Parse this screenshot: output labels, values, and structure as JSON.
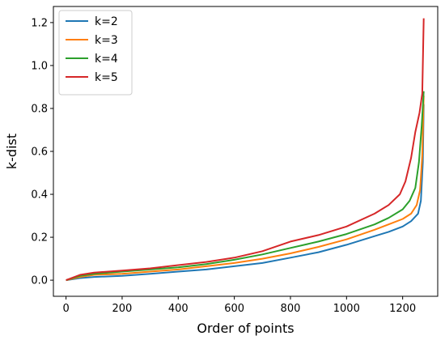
{
  "chart_data": {
    "type": "line",
    "xlabel": "Order of points",
    "ylabel": "k-dist",
    "xlim": [
      -45,
      1325
    ],
    "ylim": [
      -0.075,
      1.275
    ],
    "xticks": [
      0,
      200,
      400,
      600,
      800,
      1000,
      1200
    ],
    "yticks": [
      0.0,
      0.2,
      0.4,
      0.6,
      0.8,
      1.0,
      1.2
    ],
    "xtick_labels": [
      "0",
      "200",
      "400",
      "600",
      "800",
      "1000",
      "1200"
    ],
    "ytick_labels": [
      "0.0",
      "0.2",
      "0.4",
      "0.6",
      "0.8",
      "1.0",
      "1.2"
    ],
    "grid": false,
    "legend_position": "top-left",
    "series": [
      {
        "name": "k=2",
        "color": "#1f77b4",
        "x": [
          0,
          50,
          100,
          200,
          300,
          400,
          500,
          600,
          700,
          800,
          900,
          1000,
          1100,
          1150,
          1200,
          1230,
          1255,
          1265,
          1272,
          1275
        ],
        "y": [
          0.0,
          0.01,
          0.015,
          0.02,
          0.03,
          0.04,
          0.05,
          0.065,
          0.08,
          0.105,
          0.13,
          0.165,
          0.205,
          0.225,
          0.25,
          0.275,
          0.31,
          0.37,
          0.55,
          0.82
        ]
      },
      {
        "name": "k=3",
        "color": "#ff7f0e",
        "x": [
          0,
          50,
          100,
          200,
          300,
          400,
          500,
          600,
          700,
          800,
          900,
          1000,
          1100,
          1150,
          1200,
          1230,
          1250,
          1262,
          1270,
          1275
        ],
        "y": [
          0.0,
          0.015,
          0.025,
          0.03,
          0.04,
          0.05,
          0.065,
          0.08,
          0.1,
          0.125,
          0.155,
          0.19,
          0.235,
          0.26,
          0.285,
          0.31,
          0.35,
          0.42,
          0.58,
          0.86
        ]
      },
      {
        "name": "k=4",
        "color": "#2ca02c",
        "x": [
          0,
          50,
          100,
          200,
          300,
          400,
          500,
          600,
          700,
          800,
          900,
          1000,
          1100,
          1150,
          1200,
          1225,
          1245,
          1258,
          1268,
          1275
        ],
        "y": [
          0.0,
          0.02,
          0.03,
          0.04,
          0.05,
          0.06,
          0.075,
          0.095,
          0.12,
          0.15,
          0.18,
          0.215,
          0.26,
          0.29,
          0.33,
          0.37,
          0.43,
          0.55,
          0.72,
          0.88
        ]
      },
      {
        "name": "k=5",
        "color": "#d62728",
        "x": [
          0,
          50,
          100,
          200,
          300,
          400,
          500,
          600,
          700,
          800,
          900,
          1000,
          1100,
          1150,
          1190,
          1210,
          1230,
          1245,
          1260,
          1270,
          1275
        ],
        "y": [
          0.0,
          0.025,
          0.035,
          0.045,
          0.055,
          0.07,
          0.085,
          0.105,
          0.135,
          0.18,
          0.21,
          0.25,
          0.31,
          0.35,
          0.4,
          0.46,
          0.57,
          0.69,
          0.78,
          0.87,
          1.22
        ]
      }
    ]
  }
}
